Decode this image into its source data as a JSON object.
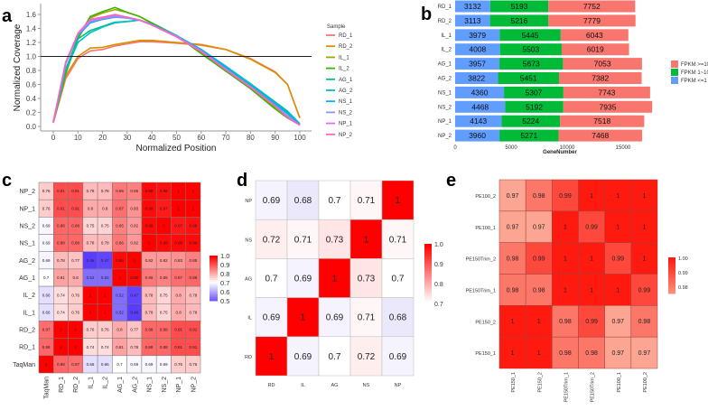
{
  "chart_data": [
    {
      "panel": "a",
      "type": "line",
      "xlabel": "Normalized Position",
      "ylabel": "Normalized Coverage",
      "xlim": [
        0,
        100
      ],
      "ylim": [
        0,
        1.6
      ],
      "xticks": [
        0,
        10,
        20,
        30,
        40,
        50,
        60,
        70,
        80,
        90,
        100
      ],
      "yticks": [
        "0.0",
        "0.2",
        "0.4",
        "0.6",
        "0.8",
        "1.0",
        "1.2",
        "1.4",
        "1.6"
      ],
      "reference_line_y": 1.0,
      "legend_title": "Sample",
      "legend_position": "right",
      "x": [
        0,
        5,
        10,
        15,
        20,
        25,
        30,
        35,
        40,
        50,
        60,
        70,
        80,
        90,
        95,
        100
      ],
      "series": [
        {
          "name": "RD_1",
          "color": "#F8766D",
          "y": [
            0.05,
            0.68,
            0.97,
            1.08,
            1.1,
            1.15,
            1.18,
            1.21,
            1.21,
            1.19,
            1.16,
            1.1,
            0.97,
            0.78,
            0.6,
            0.12
          ]
        },
        {
          "name": "RD_2",
          "color": "#D89000",
          "y": [
            0.06,
            0.72,
            1.0,
            1.12,
            1.13,
            1.17,
            1.2,
            1.23,
            1.23,
            1.2,
            1.17,
            1.1,
            0.96,
            0.77,
            0.6,
            0.12
          ]
        },
        {
          "name": "IL_1",
          "color": "#A3A500",
          "y": [
            0.06,
            0.75,
            1.25,
            1.55,
            1.62,
            1.67,
            1.63,
            1.57,
            1.47,
            1.3,
            1.05,
            0.8,
            0.55,
            0.27,
            0.13,
            0.02
          ]
        },
        {
          "name": "IL_2",
          "color": "#39B600",
          "y": [
            0.06,
            0.75,
            1.27,
            1.57,
            1.64,
            1.7,
            1.63,
            1.57,
            1.48,
            1.3,
            1.04,
            0.79,
            0.54,
            0.25,
            0.12,
            0.02
          ]
        },
        {
          "name": "AG_1",
          "color": "#00BF7D",
          "y": [
            0.06,
            0.82,
            1.25,
            1.37,
            1.43,
            1.49,
            1.5,
            1.52,
            1.46,
            1.29,
            1.1,
            0.85,
            0.6,
            0.34,
            0.2,
            0.03
          ]
        },
        {
          "name": "AG_2",
          "color": "#00BFC4",
          "y": [
            0.06,
            0.8,
            1.2,
            1.34,
            1.42,
            1.48,
            1.5,
            1.52,
            1.45,
            1.29,
            1.1,
            0.86,
            0.61,
            0.35,
            0.22,
            0.04
          ]
        },
        {
          "name": "NS_1",
          "color": "#00B0F6",
          "y": [
            0.06,
            0.9,
            1.3,
            1.48,
            1.53,
            1.56,
            1.55,
            1.52,
            1.46,
            1.3,
            1.1,
            0.84,
            0.58,
            0.32,
            0.18,
            0.03
          ]
        },
        {
          "name": "NS_2",
          "color": "#9590FF",
          "y": [
            0.06,
            0.92,
            1.32,
            1.5,
            1.54,
            1.57,
            1.55,
            1.52,
            1.45,
            1.29,
            1.08,
            0.82,
            0.57,
            0.3,
            0.15,
            0.02
          ]
        },
        {
          "name": "NP_1",
          "color": "#E76BF3",
          "y": [
            0.06,
            0.9,
            1.32,
            1.52,
            1.55,
            1.59,
            1.56,
            1.52,
            1.45,
            1.28,
            1.07,
            0.81,
            0.56,
            0.29,
            0.13,
            0.02
          ]
        },
        {
          "name": "NP_2",
          "color": "#FF62BC",
          "y": [
            0.06,
            0.9,
            1.33,
            1.53,
            1.56,
            1.6,
            1.56,
            1.52,
            1.45,
            1.28,
            1.07,
            0.81,
            0.56,
            0.29,
            0.13,
            0.02
          ]
        }
      ]
    },
    {
      "panel": "b",
      "type": "bar",
      "orientation": "horizontal",
      "stacked": true,
      "xlabel": "GeneNumber",
      "xticks": [
        "0",
        "5000",
        "10000",
        "15000"
      ],
      "xlim": [
        0,
        18000
      ],
      "categories": [
        "RD_1",
        "RD_2",
        "IL_1",
        "IL_2",
        "AG_1",
        "AG_2",
        "NS_1",
        "NS_2",
        "NP_1",
        "NP_2"
      ],
      "series": [
        {
          "name": "FPKM <=1",
          "color": "#619CFF",
          "values": [
            3132,
            3113,
            3979,
            4008,
            3957,
            3822,
            4360,
            4468,
            4143,
            3960
          ]
        },
        {
          "name": "FPKM 1~10",
          "color": "#00BA38",
          "values": [
            5193,
            5216,
            5445,
            5503,
            5673,
            5451,
            5307,
            5192,
            5224,
            5271
          ]
        },
        {
          "name": "FPKM >=10",
          "color": "#F8766D",
          "values": [
            7752,
            7779,
            6043,
            6019,
            7053,
            7382,
            7743,
            7935,
            7518,
            7468
          ]
        }
      ],
      "legend_order": [
        "FPKM >=10",
        "FPKM 1~10",
        "FPKM <=1"
      ],
      "legend_position": "right"
    },
    {
      "panel": "c",
      "type": "heatmap",
      "columns": [
        "TaqMan",
        "RD_1",
        "RD_2",
        "IL_1",
        "IL_2",
        "AG_1",
        "AG_2",
        "NS_1",
        "NS_2",
        "NP_1",
        "NP_2"
      ],
      "rows": [
        "NP_2",
        "NP_1",
        "NS_2",
        "NS_1",
        "AG_2",
        "AG_1",
        "IL_2",
        "IL_1",
        "RD_2",
        "RD_1",
        "TaqMan"
      ],
      "values": [
        [
          0.76,
          0.91,
          0.91,
          0.78,
          0.78,
          0.86,
          0.85,
          0.99,
          0.98,
          1,
          1
        ],
        [
          0.76,
          0.91,
          0.91,
          0.8,
          0.8,
          0.87,
          0.83,
          0.99,
          0.97,
          1,
          1
        ],
        [
          0.69,
          0.88,
          0.88,
          0.75,
          0.75,
          0.85,
          0.82,
          0.99,
          1,
          0.97,
          0.98
        ],
        [
          0.69,
          0.88,
          0.88,
          0.78,
          0.78,
          0.86,
          0.82,
          1,
          0.99,
          0.99,
          0.99
        ],
        [
          0.69,
          0.78,
          0.77,
          0.46,
          0.47,
          0.99,
          1,
          0.82,
          0.82,
          0.83,
          0.85
        ],
        [
          0.7,
          0.81,
          0.8,
          0.52,
          0.52,
          1,
          0.99,
          0.86,
          0.85,
          0.87,
          0.88
        ],
        [
          0.66,
          0.74,
          0.76,
          1,
          1,
          0.52,
          0.47,
          0.78,
          0.75,
          0.8,
          0.78
        ],
        [
          0.66,
          0.74,
          0.76,
          1,
          1,
          0.52,
          0.46,
          0.78,
          0.75,
          0.8,
          0.78
        ],
        [
          0.87,
          1,
          1,
          0.76,
          0.76,
          0.8,
          0.77,
          0.88,
          0.88,
          0.91,
          0.91
        ],
        [
          0.88,
          1,
          1,
          0.74,
          0.74,
          0.81,
          0.78,
          0.88,
          0.88,
          0.91,
          0.91
        ],
        [
          1,
          0.88,
          0.87,
          0.66,
          0.66,
          0.7,
          0.69,
          0.69,
          0.69,
          0.76,
          0.76
        ]
      ],
      "scale": {
        "low": 0.46,
        "mid": 0.7,
        "high": 1.0,
        "low_color": "#5a3cff",
        "mid_color": "#ffffff",
        "high_color": "#ff0000"
      },
      "legend_ticks": [
        "1.0",
        "0.9",
        "0.8",
        "0.7",
        "0.6",
        "0.5"
      ]
    },
    {
      "panel": "d",
      "type": "heatmap",
      "columns": [
        "RD",
        "IL",
        "AG",
        "NS",
        "NP"
      ],
      "rows": [
        "NP",
        "NS",
        "AG",
        "IL",
        "RD"
      ],
      "values": [
        [
          0.69,
          0.68,
          0.7,
          0.71,
          1
        ],
        [
          0.72,
          0.71,
          0.73,
          1,
          0.71
        ],
        [
          0.7,
          0.69,
          1,
          0.73,
          0.7
        ],
        [
          0.69,
          1,
          0.69,
          0.71,
          0.68
        ],
        [
          1,
          0.69,
          0.7,
          0.72,
          0.69
        ]
      ],
      "scale": {
        "low": 0.68,
        "mid": 0.7,
        "high": 1.0,
        "low_color": "#ece8fb",
        "mid_color": "#ffffff",
        "high_color": "#ff0000"
      },
      "legend_ticks": [
        "1.0",
        "0.9",
        "0.8",
        "0.7"
      ]
    },
    {
      "panel": "e",
      "type": "heatmap",
      "columns": [
        "PE150_1",
        "PE150_2",
        "PE150Trim_1",
        "PE150Trim_2",
        "PE100_1",
        "PE100_2"
      ],
      "rows": [
        "PE100_2",
        "PE100_1",
        "PE150Trim_2",
        "PE150Trim_1",
        "PE150_2",
        "PE150_1"
      ],
      "values": [
        [
          0.97,
          0.98,
          0.99,
          1,
          1,
          1
        ],
        [
          0.97,
          0.97,
          1,
          0.99,
          1,
          1
        ],
        [
          0.98,
          0.99,
          1,
          1,
          0.99,
          1
        ],
        [
          0.98,
          0.98,
          1,
          1,
          1,
          0.99
        ],
        [
          1,
          1,
          0.98,
          0.99,
          0.97,
          0.98
        ],
        [
          1,
          1,
          0.98,
          0.98,
          0.97,
          0.97
        ]
      ],
      "scale": {
        "low": 0.97,
        "high": 1.0,
        "low_color": "#fba592",
        "high_color": "#ff1a10"
      },
      "legend_ticks": [
        "1.00",
        "0.99",
        "0.98"
      ]
    }
  ]
}
